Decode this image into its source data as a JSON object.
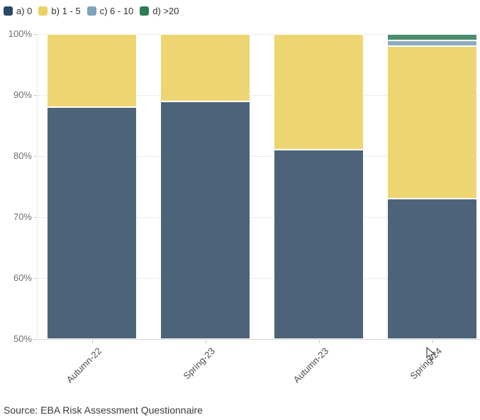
{
  "chart_data": {
    "type": "bar",
    "stacked": true,
    "stacking": "percent",
    "title": "",
    "xlabel": "",
    "ylabel": "",
    "categories": [
      "Autumn-22",
      "Spring-23",
      "Autumn-23",
      "Spring-24"
    ],
    "series": [
      {
        "name": "a) 0",
        "values": [
          88,
          89,
          81,
          73
        ],
        "legend_color": "#2B4A67",
        "bar_color": "#4D6379"
      },
      {
        "name": "b) 1 - 5",
        "values": [
          12,
          11,
          19,
          25
        ],
        "legend_color": "#EBD163",
        "bar_color": "#EDD671"
      },
      {
        "name": "c) 6 - 10",
        "values": [
          0,
          0,
          0,
          1
        ],
        "legend_color": "#7FA3BC",
        "bar_color": "#8FACBF"
      },
      {
        "name": "d) >20",
        "values": [
          0,
          0,
          0,
          1
        ],
        "legend_color": "#2E7D52",
        "bar_color": "#4A8E6E"
      }
    ],
    "ylim": [
      50,
      100
    ],
    "y_ticks": [
      {
        "value": 100,
        "label": "100%"
      },
      {
        "value": 90,
        "label": "90%"
      },
      {
        "value": 80,
        "label": "80%"
      },
      {
        "value": 70,
        "label": "70%"
      },
      {
        "value": 60,
        "label": "60%"
      },
      {
        "value": 50,
        "label": "50%"
      }
    ],
    "grid": true,
    "legend_position": "top-left"
  },
  "source": {
    "text": "Source: EBA Risk Assessment Questionnaire"
  }
}
